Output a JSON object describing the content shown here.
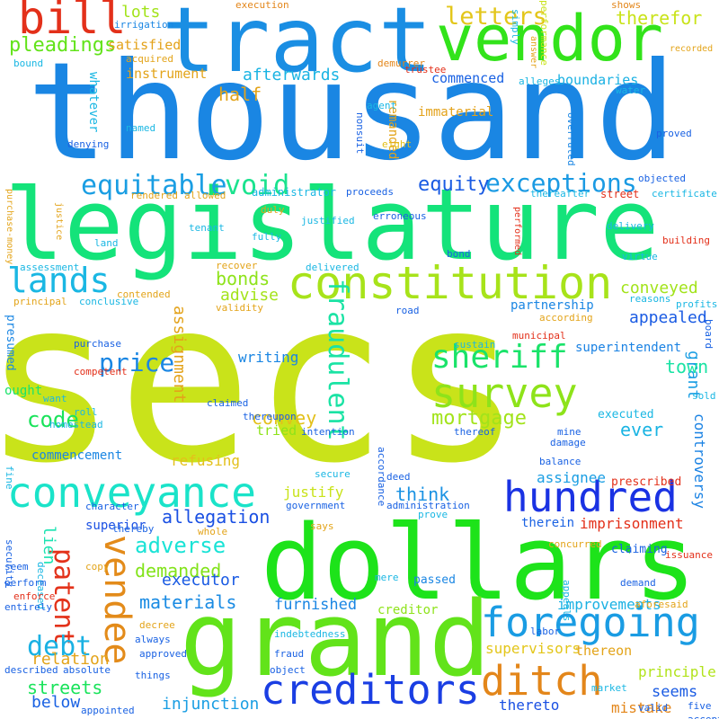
{
  "words": [
    {
      "text": "secs",
      "color": "#c9e31a"
    },
    {
      "text": "thousand",
      "color": "#1a86e3"
    },
    {
      "text": "legislature",
      "color": "#14e37a"
    },
    {
      "text": "dollars",
      "color": "#1de31a"
    },
    {
      "text": "grand",
      "color": "#62e31a"
    },
    {
      "text": "tract",
      "color": "#1a8ee3"
    },
    {
      "text": "vendor",
      "color": "#32e31a"
    },
    {
      "text": "constitution",
      "color": "#a7e31a"
    },
    {
      "text": "conveyance",
      "color": "#1ae3c9"
    },
    {
      "text": "hundred",
      "color": "#1a32e3"
    },
    {
      "text": "creditors",
      "color": "#1a3ee3"
    },
    {
      "text": "foregoing",
      "color": "#1a9ce3"
    },
    {
      "text": "survey",
      "color": "#8ee31a"
    },
    {
      "text": "ditch",
      "color": "#e3861a"
    },
    {
      "text": "sheriff",
      "color": "#1ae36a"
    },
    {
      "text": "fraudulent",
      "color": "#1ae3a4"
    },
    {
      "text": "vendee",
      "color": "#e38b1a"
    },
    {
      "text": "bill",
      "color": "#e3301a"
    },
    {
      "text": "lands",
      "color": "#1ab7e3"
    },
    {
      "text": "exceptions",
      "color": "#1a9ae3"
    },
    {
      "text": "equitable",
      "color": "#1a9ee3"
    },
    {
      "text": "void",
      "color": "#1ae38e"
    },
    {
      "text": "letters",
      "color": "#e3c61a"
    },
    {
      "text": "therefor",
      "color": "#c9e31a"
    },
    {
      "text": "mortgage",
      "color": "#a2e31a"
    },
    {
      "text": "code",
      "color": "#1ae35b"
    },
    {
      "text": "patent",
      "color": "#e3321a"
    },
    {
      "text": "debt",
      "color": "#1ab1e3"
    },
    {
      "text": "adverse",
      "color": "#1ae3d6"
    },
    {
      "text": "allegation",
      "color": "#1a50e3"
    },
    {
      "text": "demanded",
      "color": "#82e31a"
    },
    {
      "text": "bonds",
      "color": "#8ee31a"
    },
    {
      "text": "price",
      "color": "#1a86e3"
    },
    {
      "text": "convey",
      "color": "#e3c01a"
    },
    {
      "text": "think",
      "color": "#1a92e3"
    },
    {
      "text": "ever",
      "color": "#1ab4e3"
    },
    {
      "text": "half",
      "color": "#e3a41a"
    },
    {
      "text": "afterwards",
      "color": "#1ab4e3"
    },
    {
      "text": "equity",
      "color": "#1a5be3"
    },
    {
      "text": "pleadings",
      "color": "#62e31a"
    },
    {
      "text": "lots",
      "color": "#a2e31a"
    },
    {
      "text": "assignment",
      "color": "#e3a21a"
    },
    {
      "text": "advise",
      "color": "#a4e31a"
    },
    {
      "text": "grant",
      "color": "#1a9ee3"
    },
    {
      "text": "town",
      "color": "#1ae3a4"
    },
    {
      "text": "conveyed",
      "color": "#a2e31a"
    },
    {
      "text": "appealed",
      "color": "#1a5be3"
    },
    {
      "text": "controversy",
      "color": "#1a82e3"
    },
    {
      "text": "materials",
      "color": "#1a8be3"
    },
    {
      "text": "executor",
      "color": "#1a5be3"
    },
    {
      "text": "lien",
      "color": "#1ae3b1"
    },
    {
      "text": "relation",
      "color": "#e3a41a"
    },
    {
      "text": "streets",
      "color": "#1ae35b"
    },
    {
      "text": "below",
      "color": "#1a62e3"
    },
    {
      "text": "seems",
      "color": "#1a5be3"
    },
    {
      "text": "injunction",
      "color": "#1a9ee3"
    },
    {
      "text": "furnished",
      "color": "#1a86e3"
    },
    {
      "text": "imprisonment",
      "color": "#e3301a"
    },
    {
      "text": "improvements",
      "color": "#1ab1e3"
    },
    {
      "text": "supervisors",
      "color": "#e3c61a"
    },
    {
      "text": "principle",
      "color": "#b1e31a"
    },
    {
      "text": "mistake",
      "color": "#e3861a"
    },
    {
      "text": "thereon",
      "color": "#e3a41a"
    },
    {
      "text": "thereto",
      "color": "#1a50e3"
    },
    {
      "text": "commenced",
      "color": "#1a62e3"
    },
    {
      "text": "boundaries",
      "color": "#1ab1e3"
    },
    {
      "text": "immaterial",
      "color": "#e3a21a"
    },
    {
      "text": "instrument",
      "color": "#e3a41a"
    },
    {
      "text": "satisfied",
      "color": "#e3a21a"
    },
    {
      "text": "remanded",
      "color": "#e3a41a"
    },
    {
      "text": "whatever",
      "color": "#1ab7e3"
    },
    {
      "text": "refusing",
      "color": "#e3c01a"
    },
    {
      "text": "writing",
      "color": "#1a86e3"
    },
    {
      "text": "justify",
      "color": "#c9e31a"
    },
    {
      "text": "assignee",
      "color": "#1a9ee3"
    },
    {
      "text": "partnership",
      "color": "#1a86e3"
    },
    {
      "text": "superintendent",
      "color": "#1a82e3"
    },
    {
      "text": "commencement",
      "color": "#1a86e3"
    },
    {
      "text": "ought",
      "color": "#1ae36a"
    },
    {
      "text": "presumed",
      "color": "#1a86e3"
    },
    {
      "text": "tried",
      "color": "#8ee31a"
    },
    {
      "text": "superior",
      "color": "#1a50e3"
    },
    {
      "text": "prescribed",
      "color": "#e3301a"
    },
    {
      "text": "claiming",
      "color": "#1a62e3"
    },
    {
      "text": "executed",
      "color": "#1ab7e3"
    },
    {
      "text": "creditor",
      "color": "#8ee31a"
    },
    {
      "text": "passed",
      "color": "#1a86e3"
    },
    {
      "text": "therein",
      "color": "#1a62e3"
    },
    {
      "text": "execution",
      "color": "#e3861a"
    },
    {
      "text": "irrigation",
      "color": "#1a86e3"
    },
    {
      "text": "acquired",
      "color": "#e3a41a"
    },
    {
      "text": "bound",
      "color": "#1ab7e3"
    },
    {
      "text": "demurrer",
      "color": "#e3861a"
    },
    {
      "text": "agent",
      "color": "#1ab7e3"
    },
    {
      "text": "alleges",
      "color": "#1ab7e3"
    },
    {
      "text": "water",
      "color": "#1ab7e3"
    },
    {
      "text": "trustee",
      "color": "#e3301a"
    },
    {
      "text": "overruled",
      "color": "#1a86e3"
    },
    {
      "text": "proved",
      "color": "#1a62e3"
    },
    {
      "text": "shows",
      "color": "#e3861a"
    },
    {
      "text": "recorded",
      "color": "#e3a41a"
    },
    {
      "text": "performance",
      "color": "#c9e31a"
    },
    {
      "text": "simply",
      "color": "#1ab7e3"
    },
    {
      "text": "answer",
      "color": "#e3a41a"
    },
    {
      "text": "named",
      "color": "#1ab7e3"
    },
    {
      "text": "denying",
      "color": "#1a62e3"
    },
    {
      "text": "nonsuit",
      "color": "#1a62e3"
    },
    {
      "text": "eight",
      "color": "#e3c01a"
    },
    {
      "text": "rendered",
      "color": "#e3a41a"
    },
    {
      "text": "allowed",
      "color": "#e3a41a"
    },
    {
      "text": "administrator",
      "color": "#1ab7e3"
    },
    {
      "text": "proceeds",
      "color": "#1a62e3"
    },
    {
      "text": "thereafter",
      "color": "#1ab7e3"
    },
    {
      "text": "street",
      "color": "#e3301a"
    },
    {
      "text": "certificate",
      "color": "#1ab7e3"
    },
    {
      "text": "objected",
      "color": "#1a62e3"
    },
    {
      "text": "purchase-money",
      "color": "#e3a41a"
    },
    {
      "text": "justice",
      "color": "#e3a41a"
    },
    {
      "text": "duly",
      "color": "#e3a41a"
    },
    {
      "text": "justified",
      "color": "#1ab7e3"
    },
    {
      "text": "erroneous",
      "color": "#1a62e3"
    },
    {
      "text": "performed",
      "color": "#e3301a"
    },
    {
      "text": "delivery",
      "color": "#1ab7e3"
    },
    {
      "text": "tenant",
      "color": "#1ab7e3"
    },
    {
      "text": "land",
      "color": "#1ab7e3"
    },
    {
      "text": "fully",
      "color": "#1ab7e3"
    },
    {
      "text": "bond",
      "color": "#1a62e3"
    },
    {
      "text": "building",
      "color": "#e3301a"
    },
    {
      "text": "assessment",
      "color": "#1ab7e3"
    },
    {
      "text": "recover",
      "color": "#e3a41a"
    },
    {
      "text": "delivered",
      "color": "#1ab7e3"
    },
    {
      "text": "virtue",
      "color": "#1ab7e3"
    },
    {
      "text": "contended",
      "color": "#e3a41a"
    },
    {
      "text": "principal",
      "color": "#e3a41a"
    },
    {
      "text": "conclusive",
      "color": "#1ab7e3"
    },
    {
      "text": "validity",
      "color": "#e3a41a"
    },
    {
      "text": "reasons",
      "color": "#1ab7e3"
    },
    {
      "text": "profits",
      "color": "#1ab7e3"
    },
    {
      "text": "board",
      "color": "#1a62e3"
    },
    {
      "text": "according",
      "color": "#e3a41a"
    },
    {
      "text": "road",
      "color": "#1a62e3"
    },
    {
      "text": "municipal",
      "color": "#e3301a"
    },
    {
      "text": "sustain",
      "color": "#1ab7e3"
    },
    {
      "text": "purchase",
      "color": "#1a62e3"
    },
    {
      "text": "competent",
      "color": "#e3301a"
    },
    {
      "text": "want",
      "color": "#1ab7e3"
    },
    {
      "text": "roll",
      "color": "#1ab7e3"
    },
    {
      "text": "claimed",
      "color": "#1a62e3"
    },
    {
      "text": "homestead",
      "color": "#1ab7e3"
    },
    {
      "text": "thereupon",
      "color": "#1a62e3"
    },
    {
      "text": "intention",
      "color": "#1a62e3"
    },
    {
      "text": "mine",
      "color": "#1a62e3"
    },
    {
      "text": "thereof",
      "color": "#1a62e3"
    },
    {
      "text": "damage",
      "color": "#1a62e3"
    },
    {
      "text": "sold",
      "color": "#1ab7e3"
    },
    {
      "text": "secure",
      "color": "#1ab7e3"
    },
    {
      "text": "deed",
      "color": "#1a62e3"
    },
    {
      "text": "balance",
      "color": "#1a62e3"
    },
    {
      "text": "fine",
      "color": "#1ab7e3"
    },
    {
      "text": "accordance",
      "color": "#1a62e3"
    },
    {
      "text": "government",
      "color": "#1a62e3"
    },
    {
      "text": "administration",
      "color": "#1a62e3"
    },
    {
      "text": "prove",
      "color": "#1ab7e3"
    },
    {
      "text": "character",
      "color": "#1a62e3"
    },
    {
      "text": "thereby",
      "color": "#1a62e3"
    },
    {
      "text": "whole",
      "color": "#e3a41a"
    },
    {
      "text": "security",
      "color": "#1a62e3"
    },
    {
      "text": "deceased",
      "color": "#1ab7e3"
    },
    {
      "text": "says",
      "color": "#e3a41a"
    },
    {
      "text": "seem",
      "color": "#1a62e3"
    },
    {
      "text": "copy",
      "color": "#e3a41a"
    },
    {
      "text": "concurred",
      "color": "#e3a41a"
    },
    {
      "text": "issuance",
      "color": "#e3301a"
    },
    {
      "text": "perform",
      "color": "#1a62e3"
    },
    {
      "text": "enforce",
      "color": "#e3301a"
    },
    {
      "text": "entirely",
      "color": "#1a62e3"
    },
    {
      "text": "mere",
      "color": "#1ab7e3"
    },
    {
      "text": "appeals",
      "color": "#1ab7e3"
    },
    {
      "text": "demand",
      "color": "#1a62e3"
    },
    {
      "text": "aforesaid",
      "color": "#e3a41a"
    },
    {
      "text": "decree",
      "color": "#e3a41a"
    },
    {
      "text": "always",
      "color": "#1a62e3"
    },
    {
      "text": "approved",
      "color": "#1a62e3"
    },
    {
      "text": "labor",
      "color": "#1a62e3"
    },
    {
      "text": "indebtedness",
      "color": "#1ab7e3"
    },
    {
      "text": "fraud",
      "color": "#1a62e3"
    },
    {
      "text": "object",
      "color": "#1a62e3"
    },
    {
      "text": "market",
      "color": "#1ab7e3"
    },
    {
      "text": "described",
      "color": "#1a62e3"
    },
    {
      "text": "absolute",
      "color": "#1a62e3"
    },
    {
      "text": "things",
      "color": "#1a62e3"
    },
    {
      "text": "appointed",
      "color": "#1a62e3"
    },
    {
      "text": "valid",
      "color": "#1a62e3"
    },
    {
      "text": "five",
      "color": "#1a62e3"
    },
    {
      "text": "accept",
      "color": "#1a62e3"
    }
  ]
}
